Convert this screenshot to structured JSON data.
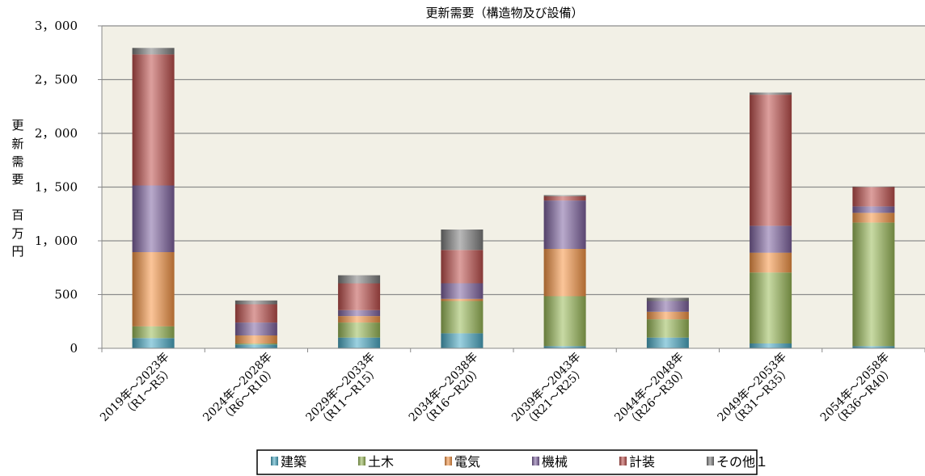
{
  "chart_data": {
    "type": "bar",
    "stacked": true,
    "title": "更新需要（構造物及び設備）",
    "ylabel": [
      "更",
      "新",
      "需",
      "要",
      "",
      "百",
      "万",
      "円"
    ],
    "ylim": [
      0,
      3000
    ],
    "yticks": [
      0,
      500,
      1000,
      1500,
      2000,
      2500,
      3000
    ],
    "ytick_labels": [
      "0",
      "500",
      "1，000",
      "1，500",
      "2，000",
      "2，500",
      "3，000"
    ],
    "grid": true,
    "legend_position": "bottom",
    "categories": [
      {
        "line1": "2019年～2023年",
        "line2": "（R1～R5）"
      },
      {
        "line1": "2024年～2028年",
        "line2": "（R6～R10）"
      },
      {
        "line1": "2029年～2033年",
        "line2": "（R11～R15）"
      },
      {
        "line1": "2034年～2038年",
        "line2": "（R16～R20）"
      },
      {
        "line1": "2039年～2043年",
        "line2": "（R21～R25）"
      },
      {
        "line1": "2044年～2048年",
        "line2": "（R26～R30）"
      },
      {
        "line1": "2049年～2053年",
        "line2": "（R31～R35）"
      },
      {
        "line1": "2054年～2058年",
        "line2": "（R36～R40）"
      }
    ],
    "series": [
      {
        "name": "建築",
        "color": "#4bacc6",
        "values": [
          95,
          35,
          100,
          140,
          20,
          100,
          45,
          20
        ]
      },
      {
        "name": "土木",
        "color": "#9bbb59",
        "values": [
          110,
          10,
          140,
          300,
          465,
          170,
          660,
          1150
        ]
      },
      {
        "name": "電気",
        "color": "#f79646",
        "values": [
          690,
          75,
          60,
          20,
          440,
          70,
          185,
          90
        ]
      },
      {
        "name": "機械",
        "color": "#8064a2",
        "values": [
          620,
          120,
          55,
          145,
          450,
          100,
          250,
          60
        ]
      },
      {
        "name": "計装",
        "color": "#c0504d",
        "values": [
          1220,
          170,
          250,
          310,
          40,
          0,
          1220,
          180
        ]
      },
      {
        "name": "その他１",
        "color": "#7f7f7f",
        "values": [
          60,
          35,
          75,
          190,
          10,
          30,
          20,
          5
        ]
      }
    ]
  }
}
